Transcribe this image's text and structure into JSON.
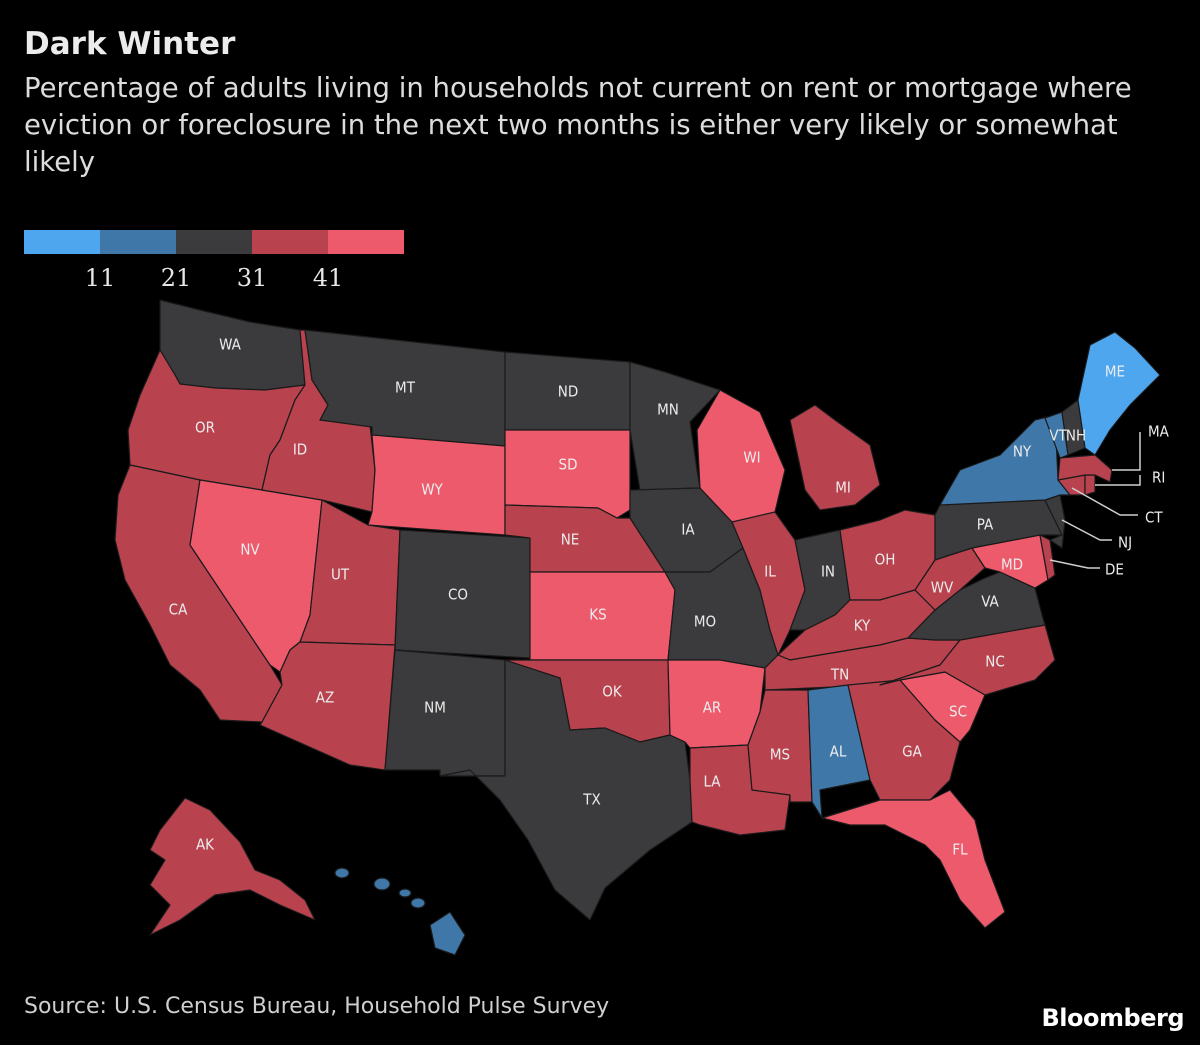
{
  "header": {
    "title": "Dark Winter",
    "subtitle": "Percentage of adults living in households not current on rent or mortgage where eviction or foreclosure in the next two months is either very likely or somewhat likely"
  },
  "legend": {
    "colors": [
      "#4ea6ef",
      "#3f78a8",
      "#3b3b3d",
      "#b9424f",
      "#ed5a6c"
    ],
    "ticks": [
      "11",
      "21",
      "31",
      "41"
    ]
  },
  "map_data": {
    "type": "choropleth",
    "region": "United States",
    "bins": [
      "below 11",
      "11-21",
      "21-31",
      "31-41",
      "41+"
    ],
    "states": [
      {
        "abbr": "WA",
        "bin": 2
      },
      {
        "abbr": "OR",
        "bin": 3
      },
      {
        "abbr": "CA",
        "bin": 3
      },
      {
        "abbr": "NV",
        "bin": 4
      },
      {
        "abbr": "ID",
        "bin": 3
      },
      {
        "abbr": "MT",
        "bin": 2
      },
      {
        "abbr": "WY",
        "bin": 4
      },
      {
        "abbr": "UT",
        "bin": 3
      },
      {
        "abbr": "AZ",
        "bin": 3
      },
      {
        "abbr": "CO",
        "bin": 2
      },
      {
        "abbr": "NM",
        "bin": 2
      },
      {
        "abbr": "ND",
        "bin": 2
      },
      {
        "abbr": "SD",
        "bin": 4
      },
      {
        "abbr": "NE",
        "bin": 3
      },
      {
        "abbr": "KS",
        "bin": 4
      },
      {
        "abbr": "OK",
        "bin": 3
      },
      {
        "abbr": "TX",
        "bin": 2
      },
      {
        "abbr": "MN",
        "bin": 2
      },
      {
        "abbr": "IA",
        "bin": 2
      },
      {
        "abbr": "MO",
        "bin": 2
      },
      {
        "abbr": "AR",
        "bin": 4
      },
      {
        "abbr": "LA",
        "bin": 3
      },
      {
        "abbr": "WI",
        "bin": 4
      },
      {
        "abbr": "IL",
        "bin": 3
      },
      {
        "abbr": "MI",
        "bin": 3
      },
      {
        "abbr": "IN",
        "bin": 2
      },
      {
        "abbr": "OH",
        "bin": 3
      },
      {
        "abbr": "KY",
        "bin": 3
      },
      {
        "abbr": "TN",
        "bin": 3
      },
      {
        "abbr": "MS",
        "bin": 3
      },
      {
        "abbr": "AL",
        "bin": 1
      },
      {
        "abbr": "GA",
        "bin": 3
      },
      {
        "abbr": "FL",
        "bin": 4
      },
      {
        "abbr": "SC",
        "bin": 4
      },
      {
        "abbr": "NC",
        "bin": 3
      },
      {
        "abbr": "VA",
        "bin": 2
      },
      {
        "abbr": "WV",
        "bin": 3
      },
      {
        "abbr": "MD",
        "bin": 4
      },
      {
        "abbr": "DE",
        "bin": 3
      },
      {
        "abbr": "PA",
        "bin": 2
      },
      {
        "abbr": "NJ",
        "bin": 2
      },
      {
        "abbr": "NY",
        "bin": 1
      },
      {
        "abbr": "CT",
        "bin": 3
      },
      {
        "abbr": "RI",
        "bin": 3
      },
      {
        "abbr": "MA",
        "bin": 3
      },
      {
        "abbr": "VT",
        "bin": 1
      },
      {
        "abbr": "NH",
        "bin": 2
      },
      {
        "abbr": "ME",
        "bin": 0
      },
      {
        "abbr": "AK",
        "bin": 3
      },
      {
        "abbr": "HI",
        "bin": 1
      }
    ],
    "callouts": [
      "MA",
      "RI",
      "CT",
      "NJ",
      "DE"
    ]
  },
  "footer": {
    "source": "Source: U.S. Census Bureau, Household Pulse Survey",
    "brand": "Bloomberg"
  }
}
